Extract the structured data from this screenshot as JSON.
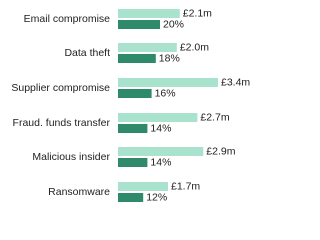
{
  "chart_data": {
    "type": "bar",
    "orientation": "horizontal",
    "categories": [
      "Email compromise",
      "Data theft",
      "Supplier compromise",
      "Fraud. funds transfer",
      "Malicious insider",
      "Ransomware"
    ],
    "series": [
      {
        "color": "#a9e2cd",
        "values": [
          2.1,
          2.0,
          3.4,
          2.7,
          2.9,
          1.7
        ],
        "value_labels": [
          "£2.1m",
          "£2.0m",
          "£3.4m",
          "£2.7m",
          "£2.9m",
          "£1.7m"
        ]
      },
      {
        "color": "#2e8a6b",
        "values": [
          20,
          18,
          16,
          14,
          14,
          12
        ],
        "value_labels": [
          "20%",
          "18%",
          "16%",
          "14%",
          "14%",
          "12%"
        ]
      }
    ]
  }
}
